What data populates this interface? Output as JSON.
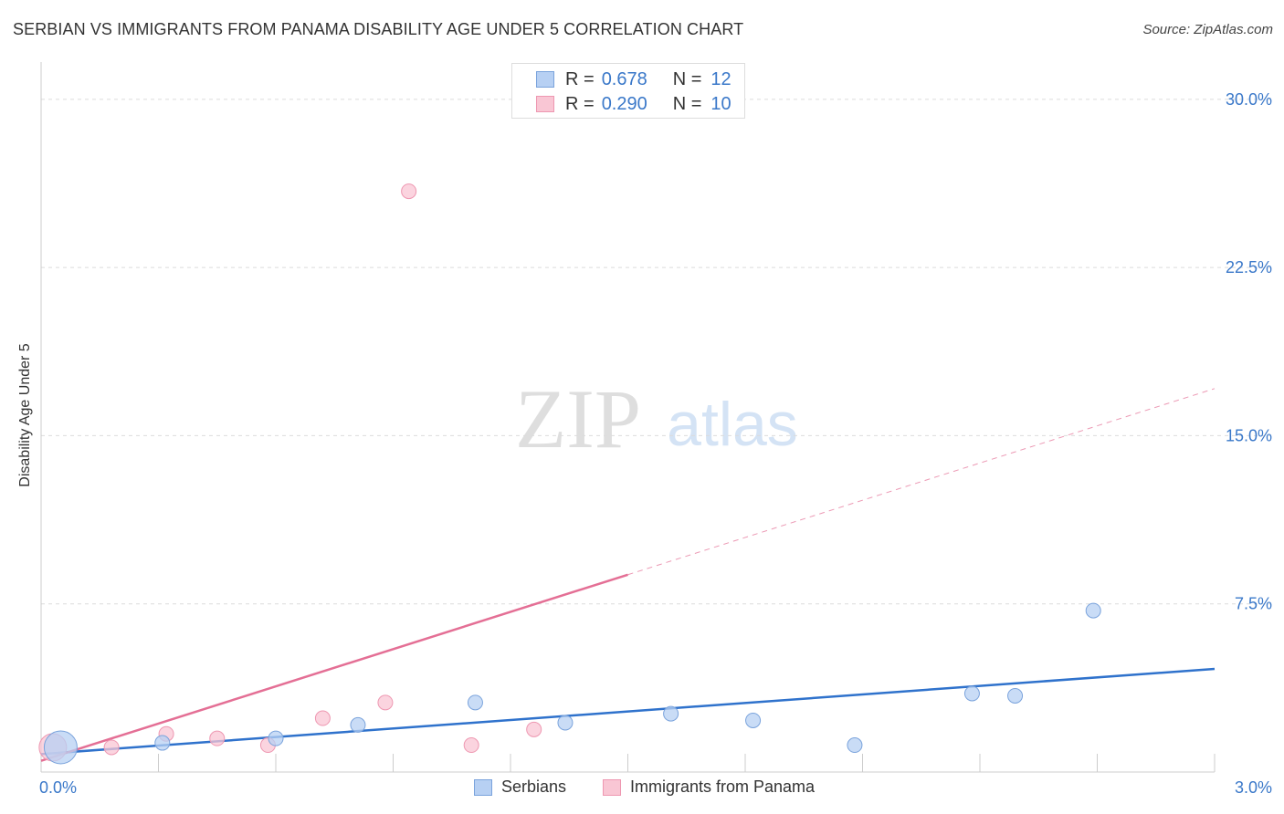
{
  "header": {
    "title": "SERBIAN VS IMMIGRANTS FROM PANAMA DISABILITY AGE UNDER 5 CORRELATION CHART",
    "source": "Source: ZipAtlas.com"
  },
  "watermark": {
    "zip": "ZIP",
    "atlas": "atlas"
  },
  "legend_top": {
    "r_label": "R =",
    "n_label": "N =",
    "rows": [
      {
        "r": "0.678",
        "n": "12"
      },
      {
        "r": "0.290",
        "n": "10"
      }
    ]
  },
  "colors": {
    "serbians_fill": "#b7d0f3",
    "serbians_stroke": "#7aa3dc",
    "serbians_line": "#2f72cc",
    "panama_fill": "#f9c6d4",
    "panama_stroke": "#ee97b1",
    "panama_line": "#e46f95",
    "tick_label": "#3a78c9",
    "grid": "#dcdcdc"
  },
  "chart_data": {
    "type": "scatter",
    "title": "SERBIAN VS IMMIGRANTS FROM PANAMA DISABILITY AGE UNDER 5 CORRELATION CHART",
    "xlabel": "",
    "ylabel": "Disability Age Under 5",
    "xlim": [
      0,
      3.0
    ],
    "ylim": [
      0,
      31.5
    ],
    "x_tick_labels": [
      {
        "value": 0,
        "label": "0.0%"
      },
      {
        "value": 3.0,
        "label": "3.0%"
      }
    ],
    "y_tick_labels": [
      {
        "value": 7.5,
        "label": "7.5%"
      },
      {
        "value": 15,
        "label": "15.0%"
      },
      {
        "value": 22.5,
        "label": "22.5%"
      },
      {
        "value": 30,
        "label": "30.0%"
      }
    ],
    "legend_position": "bottom",
    "series": [
      {
        "name": "Serbians",
        "color": "#2f72cc",
        "points": [
          {
            "x": 0.05,
            "y": 1.1,
            "size": "large"
          },
          {
            "x": 0.31,
            "y": 1.3
          },
          {
            "x": 0.6,
            "y": 1.5
          },
          {
            "x": 0.81,
            "y": 2.1
          },
          {
            "x": 1.11,
            "y": 3.1
          },
          {
            "x": 1.34,
            "y": 2.2
          },
          {
            "x": 1.61,
            "y": 2.6
          },
          {
            "x": 1.82,
            "y": 2.3
          },
          {
            "x": 2.08,
            "y": 1.2
          },
          {
            "x": 2.38,
            "y": 3.5
          },
          {
            "x": 2.49,
            "y": 3.4
          },
          {
            "x": 2.69,
            "y": 7.2
          }
        ],
        "trend": {
          "x0": 0,
          "y0": 0.8,
          "x1": 3.0,
          "y1": 4.6,
          "dashed_from": null
        }
      },
      {
        "name": "Immigrants from Panama",
        "color": "#e46f95",
        "points": [
          {
            "x": 0.03,
            "y": 1.1,
            "size": "large"
          },
          {
            "x": 0.18,
            "y": 1.1
          },
          {
            "x": 0.32,
            "y": 1.7
          },
          {
            "x": 0.45,
            "y": 1.5
          },
          {
            "x": 0.58,
            "y": 1.2
          },
          {
            "x": 0.72,
            "y": 2.4
          },
          {
            "x": 0.88,
            "y": 3.1
          },
          {
            "x": 0.94,
            "y": 25.9
          },
          {
            "x": 1.1,
            "y": 1.2
          },
          {
            "x": 1.26,
            "y": 1.9
          }
        ],
        "trend": {
          "x0": 0,
          "y0": 0.5,
          "x1": 3.0,
          "y1": 17.1,
          "dashed_from": 1.5
        }
      }
    ]
  }
}
